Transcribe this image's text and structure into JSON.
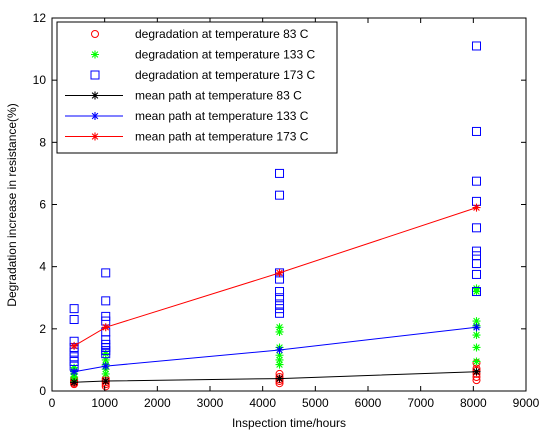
{
  "chart_data": {
    "type": "scatter",
    "title": "",
    "xlabel": "Inspection time/hours",
    "ylabel": "Degradation increase in resistance(%)",
    "xlim": [
      0,
      9000
    ],
    "ylim": [
      0,
      12
    ],
    "xticks": [
      0,
      1000,
      2000,
      3000,
      4000,
      5000,
      6000,
      7000,
      8000,
      9000
    ],
    "yticks": [
      0,
      2,
      4,
      6,
      8,
      10,
      12
    ],
    "grid": false,
    "legend_position": "top-left",
    "series": [
      {
        "name": "degradation at temperature 83 C",
        "kind": "scatter",
        "marker": "circle",
        "color": "#ff0000",
        "points": [
          [
            420,
            0.22
          ],
          [
            420,
            0.26
          ],
          [
            420,
            0.3
          ],
          [
            420,
            0.34
          ],
          [
            420,
            0.38
          ],
          [
            1020,
            0.15
          ],
          [
            1020,
            0.22
          ],
          [
            1020,
            0.28
          ],
          [
            1020,
            0.34
          ],
          [
            1020,
            0.4
          ],
          [
            4320,
            0.25
          ],
          [
            4320,
            0.32
          ],
          [
            4320,
            0.38
          ],
          [
            4320,
            0.45
          ],
          [
            4320,
            0.55
          ],
          [
            8060,
            0.35
          ],
          [
            8060,
            0.45
          ],
          [
            8060,
            0.55
          ],
          [
            8060,
            0.65
          ],
          [
            8060,
            0.72
          ],
          [
            8060,
            0.9
          ]
        ]
      },
      {
        "name": "degradation at temperature 133 C",
        "kind": "scatter",
        "marker": "star",
        "color": "#00ff00",
        "points": [
          [
            420,
            0.38
          ],
          [
            420,
            0.45
          ],
          [
            420,
            0.55
          ],
          [
            420,
            0.65
          ],
          [
            420,
            0.75
          ],
          [
            1020,
            0.55
          ],
          [
            1020,
            0.7
          ],
          [
            1020,
            0.85
          ],
          [
            1020,
            1.0
          ],
          [
            1020,
            1.2
          ],
          [
            4320,
            0.85
          ],
          [
            4320,
            1.0
          ],
          [
            4320,
            1.15
          ],
          [
            4320,
            1.4
          ],
          [
            4320,
            1.9
          ],
          [
            4320,
            2.05
          ],
          [
            8060,
            0.95
          ],
          [
            8060,
            1.4
          ],
          [
            8060,
            1.8
          ],
          [
            8060,
            2.1
          ],
          [
            8060,
            2.25
          ],
          [
            8060,
            3.2
          ],
          [
            8060,
            3.3
          ]
        ]
      },
      {
        "name": "degradation at temperature 173 C",
        "kind": "scatter",
        "marker": "square",
        "color": "#0000ff",
        "points": [
          [
            420,
            0.8
          ],
          [
            420,
            0.95
          ],
          [
            420,
            1.1
          ],
          [
            420,
            1.25
          ],
          [
            420,
            1.4
          ],
          [
            420,
            1.6
          ],
          [
            420,
            2.3
          ],
          [
            420,
            2.65
          ],
          [
            1020,
            1.2
          ],
          [
            1020,
            1.3
          ],
          [
            1020,
            1.4
          ],
          [
            1020,
            1.5
          ],
          [
            1020,
            1.65
          ],
          [
            1020,
            1.9
          ],
          [
            1020,
            2.25
          ],
          [
            1020,
            2.4
          ],
          [
            1020,
            2.9
          ],
          [
            1020,
            3.8
          ],
          [
            4320,
            2.5
          ],
          [
            4320,
            2.65
          ],
          [
            4320,
            2.8
          ],
          [
            4320,
            3.0
          ],
          [
            4320,
            3.2
          ],
          [
            4320,
            3.6
          ],
          [
            4320,
            3.8
          ],
          [
            4320,
            6.3
          ],
          [
            4320,
            7.0
          ],
          [
            8060,
            3.2
          ],
          [
            8060,
            3.75
          ],
          [
            8060,
            4.1
          ],
          [
            8060,
            4.35
          ],
          [
            8060,
            4.5
          ],
          [
            8060,
            5.25
          ],
          [
            8060,
            6.1
          ],
          [
            8060,
            6.75
          ],
          [
            8060,
            8.35
          ],
          [
            8060,
            11.1
          ]
        ]
      },
      {
        "name": "mean path at temperature 83 C",
        "kind": "line",
        "marker": "star",
        "color": "#000000",
        "points": [
          [
            420,
            0.28
          ],
          [
            1020,
            0.32
          ],
          [
            4320,
            0.4
          ],
          [
            8060,
            0.62
          ]
        ]
      },
      {
        "name": "mean path at temperature 133 C",
        "kind": "line",
        "marker": "star",
        "color": "#0000ff",
        "points": [
          [
            420,
            0.62
          ],
          [
            1020,
            0.8
          ],
          [
            4320,
            1.32
          ],
          [
            8060,
            2.05
          ]
        ]
      },
      {
        "name": "mean path at temperature 173 C",
        "kind": "line",
        "marker": "star",
        "color": "#ff0000",
        "points": [
          [
            420,
            1.45
          ],
          [
            1020,
            2.05
          ],
          [
            4320,
            3.8
          ],
          [
            8060,
            5.9
          ]
        ]
      }
    ]
  }
}
